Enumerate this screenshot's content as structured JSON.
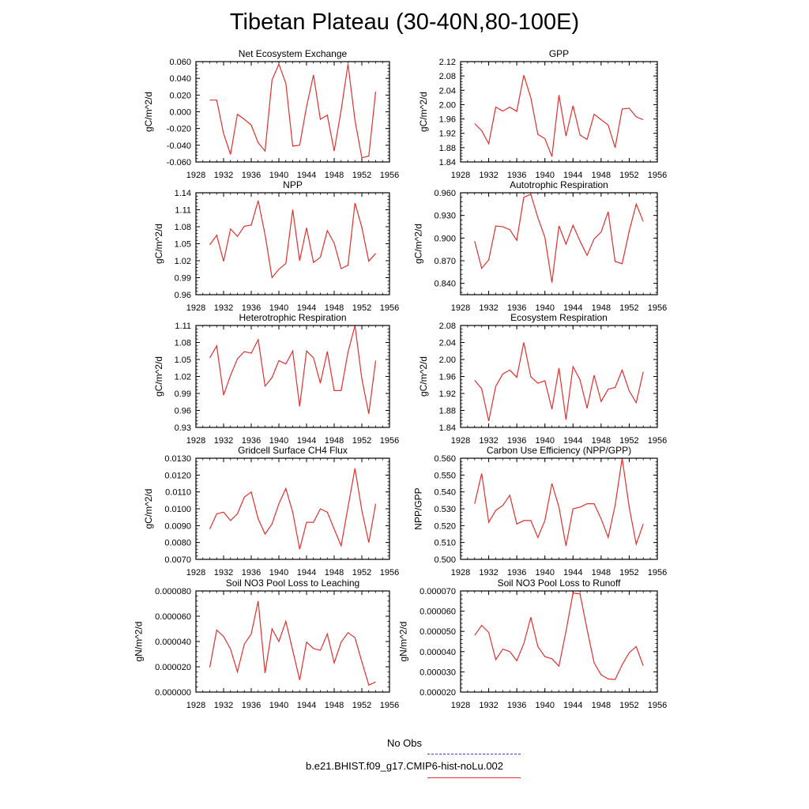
{
  "title": "Tibetan Plateau (30-40N,80-100E)",
  "legend": {
    "obs_label": "No Obs",
    "model_label": "b.e21.BHIST.f09_g17.CMIP6-hist-noLu.002",
    "obs_color": "#3a3adc",
    "model_color": "#e03030"
  },
  "chart_data": [
    {
      "type": "line",
      "title": "Net Ecosystem Exchange",
      "ylabel": "gC/m^2/d",
      "xlim": [
        1928,
        1956
      ],
      "ylim": [
        -0.06,
        0.06
      ],
      "xticks": [
        "1928",
        "1932",
        "1936",
        "1940",
        "1944",
        "1948",
        "1952",
        "1956"
      ],
      "yticks": [
        "-0.060",
        "-0.040",
        "-0.020",
        "0.000",
        "0.020",
        "0.040",
        "0.060"
      ],
      "x": [
        1930,
        1931,
        1932,
        1933,
        1934,
        1935,
        1936,
        1937,
        1938,
        1939,
        1940,
        1941,
        1942,
        1943,
        1944,
        1945,
        1946,
        1947,
        1948,
        1949,
        1950,
        1951,
        1952,
        1953,
        1954
      ],
      "values": [
        0.014,
        0.014,
        -0.026,
        -0.051,
        -0.003,
        -0.009,
        -0.016,
        -0.037,
        -0.047,
        0.038,
        0.057,
        0.034,
        -0.041,
        -0.04,
        0.006,
        0.044,
        -0.009,
        -0.004,
        -0.047,
        0.002,
        0.057,
        -0.01,
        -0.055,
        -0.053,
        0.024
      ]
    },
    {
      "type": "line",
      "title": "GPP",
      "ylabel": "gC/m^2/d",
      "xlim": [
        1928,
        1956
      ],
      "ylim": [
        1.84,
        2.12
      ],
      "xticks": [
        "1928",
        "1932",
        "1936",
        "1940",
        "1944",
        "1948",
        "1952",
        "1956"
      ],
      "yticks": [
        "1.84",
        "1.88",
        "1.92",
        "1.96",
        "2.00",
        "2.04",
        "2.08",
        "2.12"
      ],
      "x": [
        1930,
        1931,
        1932,
        1933,
        1934,
        1935,
        1936,
        1937,
        1938,
        1939,
        1940,
        1941,
        1942,
        1943,
        1944,
        1945,
        1946,
        1947,
        1948,
        1949,
        1950,
        1951,
        1952,
        1953,
        1954
      ],
      "values": [
        1.947,
        1.927,
        1.891,
        1.993,
        1.982,
        1.993,
        1.981,
        2.082,
        2.019,
        1.917,
        1.905,
        1.855,
        2.027,
        1.912,
        1.997,
        1.915,
        1.903,
        1.973,
        1.958,
        1.943,
        1.88,
        1.988,
        1.99,
        1.966,
        1.958
      ]
    },
    {
      "type": "line",
      "title": "NPP",
      "ylabel": "gC/m^2/d",
      "xlim": [
        1928,
        1956
      ],
      "ylim": [
        0.96,
        1.14
      ],
      "xticks": [
        "1928",
        "1932",
        "1936",
        "1940",
        "1944",
        "1948",
        "1952",
        "1956"
      ],
      "yticks": [
        "0.96",
        "0.99",
        "1.02",
        "1.05",
        "1.08",
        "1.11",
        "1.14"
      ],
      "x": [
        1930,
        1931,
        1932,
        1933,
        1934,
        1935,
        1936,
        1937,
        1938,
        1939,
        1940,
        1941,
        1942,
        1943,
        1944,
        1945,
        1946,
        1947,
        1948,
        1949,
        1950,
        1951,
        1952,
        1953,
        1954
      ],
      "values": [
        1.048,
        1.065,
        1.019,
        1.076,
        1.063,
        1.081,
        1.083,
        1.126,
        1.066,
        0.99,
        1.005,
        1.015,
        1.11,
        1.02,
        1.078,
        1.017,
        1.026,
        1.073,
        1.051,
        1.006,
        1.012,
        1.122,
        1.079,
        1.019,
        1.033
      ]
    },
    {
      "type": "line",
      "title": "Autotrophic Respiration",
      "ylabel": "gC/m^2/d",
      "xlim": [
        1928,
        1956
      ],
      "ylim": [
        0.825,
        0.96
      ],
      "xticks": [
        "1928",
        "1932",
        "1936",
        "1940",
        "1944",
        "1948",
        "1952",
        "1956"
      ],
      "yticks": [
        "0.840",
        "0.870",
        "0.900",
        "0.930",
        "0.960"
      ],
      "x": [
        1930,
        1931,
        1932,
        1933,
        1934,
        1935,
        1936,
        1937,
        1938,
        1939,
        1940,
        1941,
        1942,
        1943,
        1944,
        1945,
        1946,
        1947,
        1948,
        1949,
        1950,
        1951,
        1952,
        1953,
        1954
      ],
      "values": [
        0.896,
        0.86,
        0.871,
        0.916,
        0.915,
        0.911,
        0.897,
        0.954,
        0.958,
        0.927,
        0.901,
        0.841,
        0.916,
        0.892,
        0.917,
        0.896,
        0.877,
        0.899,
        0.908,
        0.935,
        0.869,
        0.866,
        0.909,
        0.945,
        0.922
      ]
    },
    {
      "type": "line",
      "title": "Heterotrophic Respiration",
      "ylabel": "gC/m^2/d",
      "xlim": [
        1928,
        1956
      ],
      "ylim": [
        0.93,
        1.11
      ],
      "xticks": [
        "1928",
        "1932",
        "1936",
        "1940",
        "1944",
        "1948",
        "1952",
        "1956"
      ],
      "yticks": [
        "0.93",
        "0.96",
        "0.99",
        "1.02",
        "1.05",
        "1.08",
        "1.11"
      ],
      "x": [
        1930,
        1931,
        1932,
        1933,
        1934,
        1935,
        1936,
        1937,
        1938,
        1939,
        1940,
        1941,
        1942,
        1943,
        1944,
        1945,
        1946,
        1947,
        1948,
        1949,
        1950,
        1951,
        1952,
        1953,
        1954
      ],
      "values": [
        1.053,
        1.074,
        0.987,
        1.022,
        1.051,
        1.064,
        1.061,
        1.085,
        1.003,
        1.018,
        1.048,
        1.042,
        1.065,
        0.967,
        1.065,
        1.053,
        1.008,
        1.064,
        0.995,
        0.995,
        1.063,
        1.11,
        1.016,
        0.954,
        1.048
      ]
    },
    {
      "type": "line",
      "title": "Ecosystem Respiration",
      "ylabel": "gC/m^2/d",
      "xlim": [
        1928,
        1956
      ],
      "ylim": [
        1.84,
        2.08
      ],
      "xticks": [
        "1928",
        "1932",
        "1936",
        "1940",
        "1944",
        "1948",
        "1952",
        "1956"
      ],
      "yticks": [
        "1.84",
        "1.88",
        "1.92",
        "1.96",
        "2.00",
        "2.04",
        "2.08"
      ],
      "x": [
        1930,
        1931,
        1932,
        1933,
        1934,
        1935,
        1936,
        1937,
        1938,
        1939,
        1940,
        1941,
        1942,
        1943,
        1944,
        1945,
        1946,
        1947,
        1948,
        1949,
        1950,
        1951,
        1952,
        1953,
        1954
      ],
      "values": [
        1.951,
        1.931,
        1.855,
        1.937,
        1.966,
        1.975,
        1.958,
        2.04,
        1.959,
        1.944,
        1.95,
        1.883,
        1.98,
        1.858,
        1.983,
        1.952,
        1.885,
        1.963,
        1.901,
        1.93,
        1.934,
        1.975,
        1.926,
        1.898,
        1.971
      ]
    },
    {
      "type": "line",
      "title": "Gridcell Surface CH4 Flux",
      "ylabel": "gC/m^2/d",
      "xlim": [
        1928,
        1956
      ],
      "ylim": [
        0.007,
        0.013
      ],
      "xticks": [
        "1928",
        "1932",
        "1936",
        "1940",
        "1944",
        "1948",
        "1952",
        "1956"
      ],
      "yticks": [
        "0.0070",
        "0.0080",
        "0.0090",
        "0.0100",
        "0.0110",
        "0.0120",
        "0.0130"
      ],
      "x": [
        1930,
        1931,
        1932,
        1933,
        1934,
        1935,
        1936,
        1937,
        1938,
        1939,
        1940,
        1941,
        1942,
        1943,
        1944,
        1945,
        1946,
        1947,
        1948,
        1949,
        1950,
        1951,
        1952,
        1953,
        1954
      ],
      "values": [
        0.0088,
        0.0097,
        0.0098,
        0.0093,
        0.0097,
        0.0107,
        0.011,
        0.0094,
        0.0085,
        0.0091,
        0.0103,
        0.0112,
        0.0098,
        0.0076,
        0.0092,
        0.0092,
        0.01,
        0.0098,
        0.0088,
        0.0078,
        0.0101,
        0.0124,
        0.0099,
        0.008,
        0.0103
      ]
    },
    {
      "type": "line",
      "title": "Carbon Use Efficiency (NPP/GPP)",
      "ylabel": "NPP/GPP",
      "xlim": [
        1928,
        1956
      ],
      "ylim": [
        0.5,
        0.56
      ],
      "xticks": [
        "1928",
        "1932",
        "1936",
        "1940",
        "1944",
        "1948",
        "1952",
        "1956"
      ],
      "yticks": [
        "0.500",
        "0.510",
        "0.520",
        "0.530",
        "0.540",
        "0.550",
        "0.560"
      ],
      "x": [
        1930,
        1931,
        1932,
        1933,
        1934,
        1935,
        1936,
        1937,
        1938,
        1939,
        1940,
        1941,
        1942,
        1943,
        1944,
        1945,
        1946,
        1947,
        1948,
        1949,
        1950,
        1951,
        1952,
        1953,
        1954
      ],
      "values": [
        0.533,
        0.551,
        0.522,
        0.529,
        0.532,
        0.538,
        0.521,
        0.523,
        0.523,
        0.513,
        0.523,
        0.545,
        0.531,
        0.508,
        0.53,
        0.531,
        0.533,
        0.533,
        0.524,
        0.513,
        0.532,
        0.56,
        0.531,
        0.509,
        0.521
      ]
    },
    {
      "type": "line",
      "title": "Soil NO3 Pool Loss to Leaching",
      "ylabel": "gN/m^2/d",
      "xlim": [
        1928,
        1956
      ],
      "ylim": [
        0.0,
        8e-05
      ],
      "xticks": [
        "1928",
        "1932",
        "1936",
        "1940",
        "1944",
        "1948",
        "1952",
        "1956"
      ],
      "yticks": [
        "0.000000",
        "0.000020",
        "0.000040",
        "0.000060",
        "0.000080"
      ],
      "x": [
        1930,
        1931,
        1932,
        1933,
        1934,
        1935,
        1936,
        1937,
        1938,
        1939,
        1940,
        1941,
        1942,
        1943,
        1944,
        1945,
        1946,
        1947,
        1948,
        1949,
        1950,
        1951,
        1952,
        1953,
        1954
      ],
      "values": [
        1.95e-05,
        4.9e-05,
        4.4e-05,
        3.4e-05,
        1.6e-05,
        3.8e-05,
        4.6e-05,
        7.2e-05,
        1.5e-05,
        5e-05,
        4e-05,
        5.6e-05,
        3.3e-05,
        9.5e-06,
        3.95e-05,
        3.45e-05,
        3.3e-05,
        4.6e-05,
        2.3e-05,
        3.95e-05,
        4.7e-05,
        4.3e-05,
        2.4e-05,
        5.5e-06,
        8e-06
      ]
    },
    {
      "type": "line",
      "title": "Soil NO3 Pool Loss to Runoff",
      "ylabel": "gN/m^2/d",
      "xlim": [
        1928,
        1956
      ],
      "ylim": [
        2e-05,
        7e-05
      ],
      "xticks": [
        "1928",
        "1932",
        "1936",
        "1940",
        "1944",
        "1948",
        "1952",
        "1956"
      ],
      "yticks": [
        "0.000020",
        "0.000030",
        "0.000040",
        "0.000050",
        "0.000060",
        "0.000070"
      ],
      "x": [
        1930,
        1931,
        1932,
        1933,
        1934,
        1935,
        1936,
        1937,
        1938,
        1939,
        1940,
        1941,
        1942,
        1943,
        1944,
        1945,
        1946,
        1947,
        1948,
        1949,
        1950,
        1951,
        1952,
        1953,
        1954
      ],
      "values": [
        4.8e-05,
        5.3e-05,
        4.95e-05,
        3.6e-05,
        4.12e-05,
        4e-05,
        3.55e-05,
        4.4e-05,
        5.7e-05,
        4.25e-05,
        3.75e-05,
        3.65e-05,
        3.28e-05,
        5e-05,
        6.9e-05,
        6.85e-05,
        5.1e-05,
        3.45e-05,
        2.85e-05,
        2.65e-05,
        2.62e-05,
        3.35e-05,
        3.95e-05,
        4.25e-05,
        3.3e-05
      ]
    }
  ]
}
